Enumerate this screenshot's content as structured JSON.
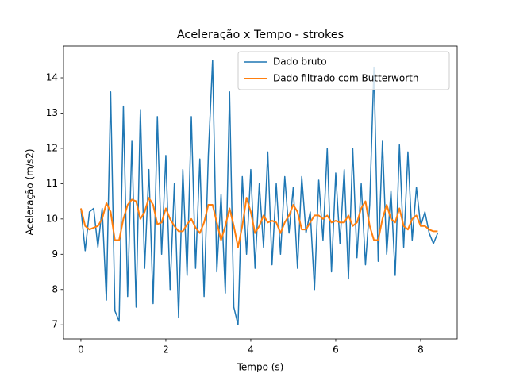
{
  "chart_data": {
    "type": "line",
    "title": "Aceleração x Tempo - strokes",
    "xlabel": "Tempo (s)",
    "ylabel": "Aceleração (m/s2)",
    "x": [
      0,
      0.1,
      0.2,
      0.3,
      0.4,
      0.5,
      0.6,
      0.7,
      0.8,
      0.9,
      1.0,
      1.1,
      1.2,
      1.3,
      1.4,
      1.5,
      1.6,
      1.7,
      1.8,
      1.9,
      2.0,
      2.1,
      2.2,
      2.3,
      2.4,
      2.5,
      2.6,
      2.7,
      2.8,
      2.9,
      3.0,
      3.1,
      3.2,
      3.3,
      3.4,
      3.5,
      3.6,
      3.7,
      3.8,
      3.9,
      4.0,
      4.1,
      4.2,
      4.3,
      4.4,
      4.5,
      4.6,
      4.7,
      4.8,
      4.9,
      5.0,
      5.1,
      5.2,
      5.3,
      5.4,
      5.5,
      5.6,
      5.7,
      5.8,
      5.9,
      6.0,
      6.1,
      6.2,
      6.3,
      6.4,
      6.5,
      6.6,
      6.7,
      6.8,
      6.9,
      7.0,
      7.1,
      7.2,
      7.3,
      7.4,
      7.5,
      7.6,
      7.7,
      7.8,
      7.9,
      8.0,
      8.1,
      8.2,
      8.3,
      8.4
    ],
    "series": [
      {
        "name": "Dado bruto",
        "color": "#1f77b4",
        "width": 1.5,
        "values": [
          10.3,
          9.1,
          10.2,
          10.3,
          9.2,
          10.3,
          7.7,
          13.6,
          7.4,
          7.1,
          13.2,
          7.8,
          12.2,
          7.5,
          13.1,
          8.6,
          11.4,
          7.6,
          12.9,
          9.0,
          11.8,
          8.0,
          11.0,
          7.2,
          11.4,
          8.4,
          12.9,
          8.6,
          11.7,
          7.8,
          11.8,
          14.5,
          8.5,
          10.7,
          7.9,
          13.6,
          7.5,
          7.0,
          11.2,
          9.0,
          11.4,
          8.6,
          11.0,
          9.2,
          11.9,
          8.7,
          11.0,
          9.0,
          11.2,
          9.6,
          10.9,
          8.6,
          11.2,
          9.6,
          10.2,
          8.0,
          11.1,
          9.4,
          12.0,
          8.5,
          11.3,
          9.3,
          11.4,
          8.3,
          12.0,
          8.9,
          11.0,
          8.7,
          10.4,
          14.3,
          8.8,
          12.2,
          9.0,
          10.8,
          8.4,
          12.1,
          9.2,
          11.9,
          9.4,
          10.9,
          9.8,
          10.2,
          9.6,
          9.3,
          9.6
        ]
      },
      {
        "name": "Dado filtrado com Butterworth",
        "color": "#ff7f0e",
        "width": 2,
        "values": [
          10.3,
          9.8,
          9.7,
          9.75,
          9.8,
          10.0,
          10.45,
          10.2,
          9.4,
          9.4,
          10.0,
          10.4,
          10.55,
          10.5,
          10.0,
          10.2,
          10.6,
          10.4,
          9.85,
          9.9,
          10.3,
          10.0,
          9.8,
          9.65,
          9.65,
          9.85,
          10.0,
          9.75,
          9.6,
          9.9,
          10.4,
          10.4,
          9.9,
          9.4,
          9.8,
          10.3,
          9.8,
          9.2,
          9.8,
          10.6,
          10.2,
          9.6,
          9.8,
          10.1,
          9.9,
          9.95,
          9.9,
          9.6,
          9.9,
          10.1,
          10.4,
          10.2,
          9.7,
          9.7,
          9.9,
          10.1,
          10.1,
          10.0,
          10.1,
          9.9,
          9.95,
          9.9,
          9.9,
          10.1,
          9.8,
          9.9,
          10.3,
          10.5,
          9.8,
          9.4,
          9.4,
          10.0,
          10.4,
          10.0,
          9.9,
          10.3,
          9.8,
          9.7,
          10.0,
          10.1,
          9.8,
          9.8,
          9.7,
          9.65,
          9.65
        ]
      }
    ],
    "xlim": [
      -0.41,
      8.86
    ],
    "ylim": [
      6.6,
      14.9
    ],
    "xticks": [
      0,
      2,
      4,
      6,
      8
    ],
    "yticks": [
      7,
      8,
      9,
      10,
      11,
      12,
      13,
      14
    ],
    "grid": false,
    "legend": "upper right"
  }
}
